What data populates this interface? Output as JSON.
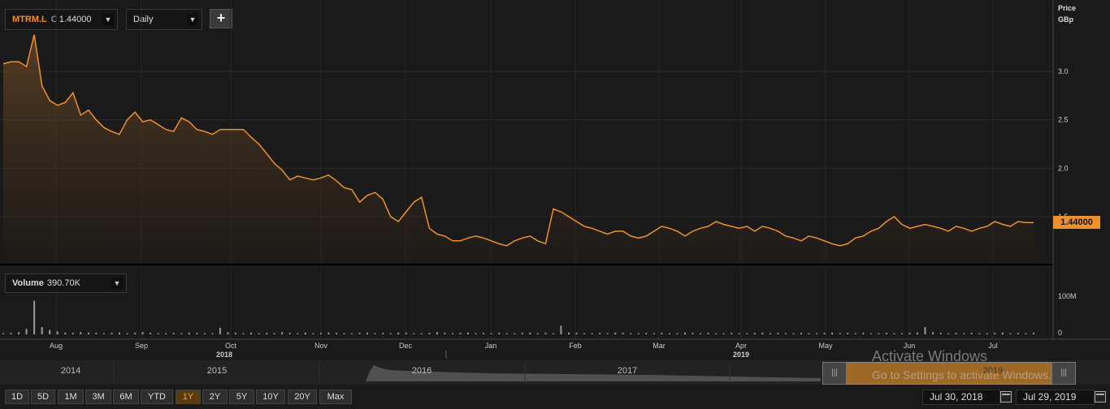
{
  "header": {
    "symbol": "MTRM.L",
    "close_prefix": "C",
    "close_value": "1.44000",
    "interval": "Daily",
    "add_label": "+",
    "price_axis_title": "Price",
    "price_axis_unit": "GBp",
    "last_price_badge": "1.44000"
  },
  "volume_panel": {
    "label": "Volume",
    "value": "390.70K",
    "axis_ticks": [
      "100M",
      "0"
    ]
  },
  "months": [
    "Aug",
    "Sep",
    "Oct",
    "Nov",
    "Dec",
    "Jan",
    "Feb",
    "Mar",
    "Apr",
    "May",
    "Jun",
    "Jul"
  ],
  "years": [
    "2018",
    "2019"
  ],
  "navigator": {
    "years": [
      "2014",
      "2015",
      "2016",
      "2017",
      "2019"
    ],
    "handle_glyph": "|||"
  },
  "periods": [
    "1D",
    "5D",
    "1M",
    "3M",
    "6M",
    "YTD",
    "1Y",
    "2Y",
    "5Y",
    "10Y",
    "20Y",
    "Max"
  ],
  "active_period": "1Y",
  "date_range": {
    "start": "Jul 30, 2018",
    "end": "Jul 29, 2019"
  },
  "watermark": {
    "line1": "Activate Windows",
    "line2": "Go to Settings to activate Windows."
  },
  "colors": {
    "line": "#f0902a",
    "badge": "#f0902a",
    "background": "#1a1a1a",
    "active_period": "#f0a040"
  },
  "chart_data": [
    {
      "type": "line",
      "title": "",
      "ylabel": "Price GBp",
      "ylim": [
        1.1,
        3.5
      ],
      "yticks": [
        1.5,
        2.0,
        2.5,
        3.0
      ],
      "x_start": "Jul 30, 2018",
      "x_end": "Jul 29, 2019",
      "series": [
        {
          "values": [
            3.08,
            3.1,
            3.1,
            3.05,
            3.38,
            2.85,
            2.7,
            2.65,
            2.68,
            2.78,
            2.55,
            2.6,
            2.5,
            2.42,
            2.38,
            2.35,
            2.5,
            2.58,
            2.48,
            2.5,
            2.45,
            2.4,
            2.38,
            2.52,
            2.48,
            2.4,
            2.38,
            2.35,
            2.4,
            2.4,
            2.4,
            2.4,
            2.32,
            2.25,
            2.15,
            2.05,
            1.98,
            1.88,
            1.92,
            1.9,
            1.88,
            1.9,
            1.93,
            1.87,
            1.8,
            1.78,
            1.65,
            1.72,
            1.75,
            1.68,
            1.5,
            1.45,
            1.55,
            1.65,
            1.7,
            1.38,
            1.32,
            1.3,
            1.25,
            1.25,
            1.28,
            1.3,
            1.28,
            1.25,
            1.22,
            1.2,
            1.25,
            1.28,
            1.3,
            1.25,
            1.22,
            1.58,
            1.55,
            1.5,
            1.45,
            1.4,
            1.38,
            1.35,
            1.32,
            1.35,
            1.35,
            1.3,
            1.28,
            1.3,
            1.35,
            1.4,
            1.38,
            1.35,
            1.3,
            1.35,
            1.38,
            1.4,
            1.45,
            1.42,
            1.4,
            1.38,
            1.4,
            1.35,
            1.4,
            1.38,
            1.35,
            1.3,
            1.28,
            1.25,
            1.3,
            1.28,
            1.25,
            1.22,
            1.2,
            1.22,
            1.28,
            1.3,
            1.35,
            1.38,
            1.45,
            1.5,
            1.42,
            1.38,
            1.4,
            1.42,
            1.4,
            1.38,
            1.35,
            1.4,
            1.38,
            1.35,
            1.38,
            1.4,
            1.45,
            1.42,
            1.4,
            1.45,
            1.44,
            1.44
          ]
        }
      ]
    },
    {
      "type": "bar",
      "title": "",
      "ylabel": "Volume",
      "ylim": [
        0,
        120
      ],
      "yticks": [
        0,
        100
      ],
      "series": [
        {
          "values": [
            3,
            4,
            6,
            15,
            92,
            20,
            12,
            8,
            5,
            4,
            6,
            5,
            4,
            3,
            4,
            5,
            3,
            4,
            6,
            4,
            3,
            3,
            4,
            3,
            5,
            4,
            3,
            3,
            18,
            6,
            4,
            3,
            5,
            3,
            4,
            3,
            6,
            4,
            3,
            5,
            3,
            4,
            5,
            4,
            3,
            3,
            4,
            5,
            3,
            4,
            3,
            5,
            4,
            3,
            3,
            4,
            6,
            4,
            3,
            4,
            5,
            3,
            4,
            3,
            4,
            3,
            3,
            4,
            5,
            3,
            4,
            3,
            24,
            5,
            4,
            3,
            3,
            4,
            3,
            5,
            4,
            3,
            3,
            4,
            3,
            4,
            3,
            3,
            5,
            4,
            3,
            4,
            3,
            3,
            4,
            3,
            3,
            4,
            5,
            3,
            4,
            3,
            3,
            4,
            3,
            3,
            4,
            5,
            3,
            4,
            3,
            4,
            3,
            3,
            4,
            3,
            3,
            4,
            5,
            20,
            6,
            4,
            3,
            4,
            3,
            4,
            3,
            3,
            4,
            5,
            3,
            4,
            3,
            4
          ]
        }
      ]
    }
  ]
}
